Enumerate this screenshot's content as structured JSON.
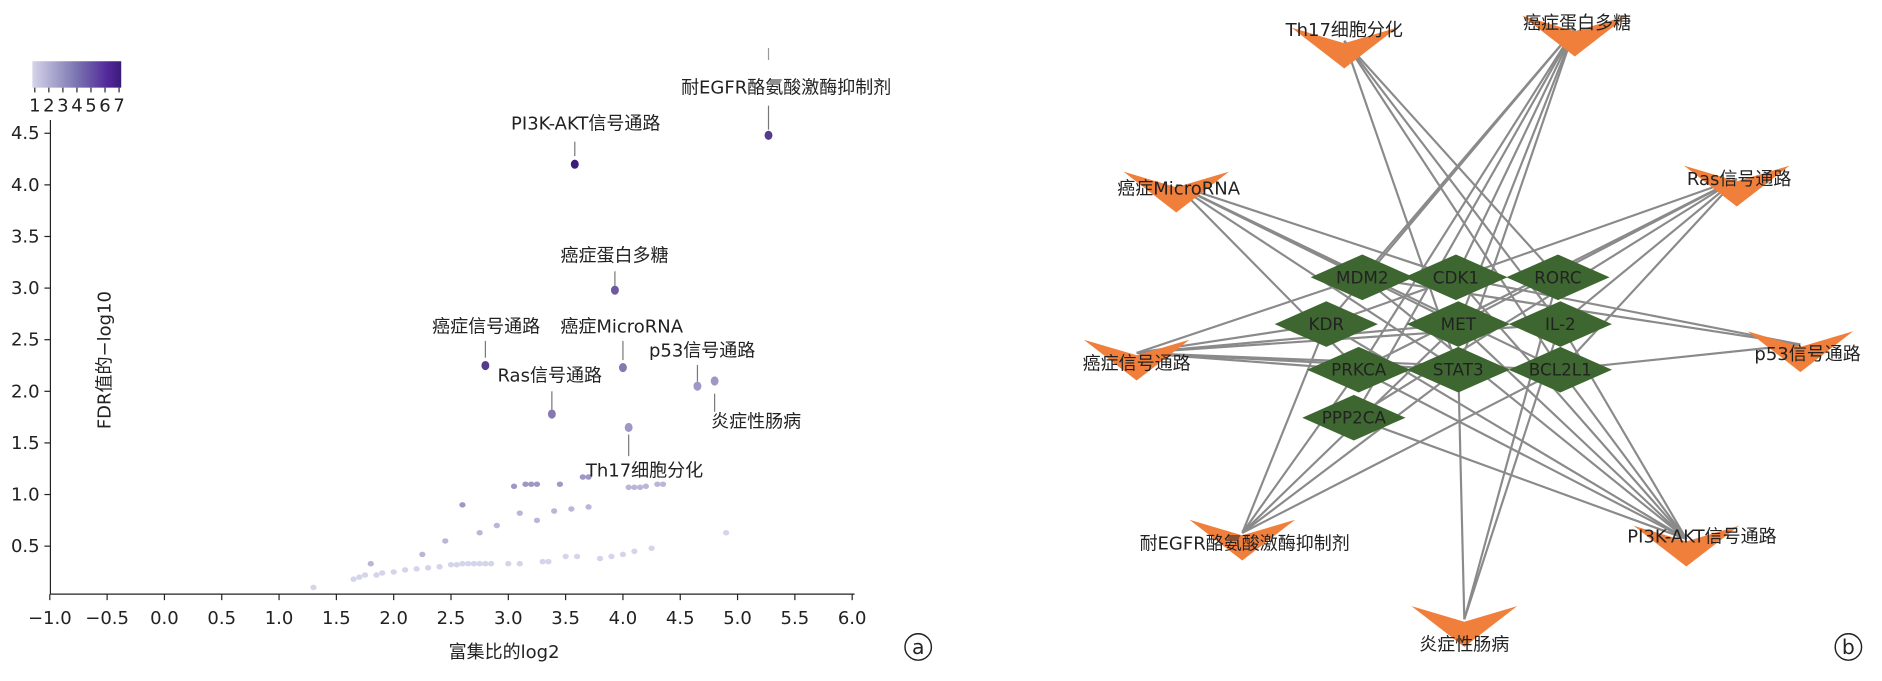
{
  "panel_a": {
    "marker": "a",
    "colorbar": {
      "ticks": [
        "1",
        "2",
        "3",
        "4",
        "5",
        "6",
        "7"
      ],
      "range": [
        1,
        7
      ],
      "colors": [
        "#d4d4ea",
        "#3b1c78"
      ]
    }
  },
  "panel_b": {
    "marker": "b"
  },
  "chart_data": [
    {
      "type": "scatter",
      "title": "",
      "xlabel": "富集比的log2",
      "ylabel": "FDR值的−log10",
      "xlim": [
        -1.0,
        6.0
      ],
      "ylim": [
        0,
        4.7
      ],
      "xticks": [
        "−1.0",
        "−0.5",
        "0.0",
        "0.5",
        "1.0",
        "1.5",
        "2.0",
        "2.5",
        "3.0",
        "3.5",
        "4.0",
        "4.5",
        "5.0",
        "5.5",
        "6.0"
      ],
      "xtick_values": [
        -1.0,
        -0.5,
        0,
        0.5,
        1.0,
        1.5,
        2.0,
        2.5,
        3.0,
        3.5,
        4.0,
        4.5,
        5.0,
        5.5,
        6.0
      ],
      "yticks": [
        "0.5",
        "1.0",
        "1.5",
        "2.0",
        "2.5",
        "3.0",
        "3.5",
        "4.0",
        "4.5"
      ],
      "ytick_values": [
        0.5,
        1.0,
        1.5,
        2.0,
        2.5,
        3.0,
        3.5,
        4.0,
        4.5
      ],
      "grid": false,
      "color_legend": "top-left",
      "labeled_points": [
        {
          "label": "耐EGFR酪氨酸激酶抑制剂",
          "x": 5.27,
          "y": 4.48,
          "c": 6
        },
        {
          "label": "PI3K-AKT信号通路",
          "x": 3.58,
          "y": 4.2,
          "c": 7
        },
        {
          "label": "癌症蛋白多糖",
          "x": 3.93,
          "y": 2.98,
          "c": 5
        },
        {
          "label": "癌症信号通路",
          "x": 2.8,
          "y": 2.25,
          "c": 6
        },
        {
          "label": "癌症MicroRNA",
          "x": 4.0,
          "y": 2.23,
          "c": 4
        },
        {
          "label": "Ras信号通路",
          "x": 3.38,
          "y": 1.78,
          "c": 4
        },
        {
          "label": "p53信号通路",
          "x": 4.65,
          "y": 2.05,
          "c": 3
        },
        {
          "label": "炎症性肠病",
          "x": 4.8,
          "y": 2.1,
          "c": 3
        },
        {
          "label": "Th17细胞分化",
          "x": 4.05,
          "y": 1.65,
          "c": 3
        }
      ],
      "points": [
        [
          1.3,
          0.1,
          1
        ],
        [
          1.65,
          0.18,
          1
        ],
        [
          1.7,
          0.2,
          1
        ],
        [
          1.75,
          0.22,
          1
        ],
        [
          1.8,
          0.33,
          2
        ],
        [
          1.85,
          0.22,
          1
        ],
        [
          1.9,
          0.24,
          1
        ],
        [
          2.0,
          0.25,
          1
        ],
        [
          2.1,
          0.27,
          1
        ],
        [
          2.2,
          0.28,
          1
        ],
        [
          2.25,
          0.42,
          2
        ],
        [
          2.3,
          0.29,
          1
        ],
        [
          2.4,
          0.3,
          1
        ],
        [
          2.45,
          0.55,
          2
        ],
        [
          2.5,
          0.32,
          1
        ],
        [
          2.55,
          0.32,
          1
        ],
        [
          2.6,
          0.33,
          1
        ],
        [
          2.65,
          0.33,
          1
        ],
        [
          2.7,
          0.33,
          1
        ],
        [
          2.75,
          0.33,
          1
        ],
        [
          2.8,
          0.33,
          1
        ],
        [
          2.85,
          0.33,
          1
        ],
        [
          2.6,
          0.9,
          3
        ],
        [
          2.75,
          0.63,
          2
        ],
        [
          2.9,
          0.7,
          2
        ],
        [
          3.0,
          0.33,
          1
        ],
        [
          3.05,
          1.08,
          3
        ],
        [
          3.1,
          0.33,
          1
        ],
        [
          3.15,
          1.1,
          3
        ],
        [
          3.2,
          1.1,
          3
        ],
        [
          3.25,
          1.1,
          3
        ],
        [
          3.1,
          0.82,
          2
        ],
        [
          3.3,
          0.35,
          1
        ],
        [
          3.35,
          0.35,
          1
        ],
        [
          3.4,
          0.84,
          2
        ],
        [
          3.45,
          1.1,
          3
        ],
        [
          3.55,
          0.86,
          2
        ],
        [
          3.65,
          1.17,
          3
        ],
        [
          3.7,
          1.17,
          3
        ],
        [
          3.7,
          0.88,
          2
        ],
        [
          3.8,
          0.38,
          1
        ],
        [
          3.9,
          0.4,
          1
        ],
        [
          4.0,
          0.42,
          1
        ],
        [
          4.05,
          1.07,
          2
        ],
        [
          4.1,
          1.07,
          2
        ],
        [
          4.15,
          1.07,
          2
        ],
        [
          4.2,
          1.08,
          2
        ],
        [
          4.25,
          0.48,
          1
        ],
        [
          4.3,
          1.1,
          2
        ],
        [
          4.35,
          1.1,
          2
        ],
        [
          4.1,
          0.45,
          1
        ],
        [
          4.9,
          0.63,
          1
        ],
        [
          3.25,
          0.75,
          2
        ],
        [
          3.5,
          0.4,
          1
        ],
        [
          3.6,
          0.4,
          1
        ]
      ]
    },
    {
      "type": "network",
      "pathway_color": "#f07f3c",
      "gene_color": "#3e6630",
      "edge_color": "#8a8a8a",
      "pathways": [
        "Th17细胞分化",
        "癌症蛋白多糖",
        "癌症MicroRNA",
        "Ras信号通路",
        "癌症信号通路",
        "p53信号通路",
        "耐EGFR酪氨酸激酶抑制剂",
        "PI3K-AKT信号通路",
        "炎症性肠病"
      ],
      "genes": [
        "MDM2",
        "CDK1",
        "RORC",
        "KDR",
        "MET",
        "IL-2",
        "PRKCA",
        "STAT3",
        "BCL2L1",
        "PPP2CA"
      ],
      "edges": [
        [
          "Th17细胞分化",
          "RORC"
        ],
        [
          "Th17细胞分化",
          "IL-2"
        ],
        [
          "Th17细胞分化",
          "STAT3"
        ],
        [
          "Th17细胞分化",
          "BCL2L1"
        ],
        [
          "癌症蛋白多糖",
          "MDM2"
        ],
        [
          "癌症蛋白多糖",
          "KDR"
        ],
        [
          "癌症蛋白多糖",
          "MET"
        ],
        [
          "癌症蛋白多糖",
          "PRKCA"
        ],
        [
          "癌症蛋白多糖",
          "STAT3"
        ],
        [
          "癌症蛋白多糖",
          "PPP2CA"
        ],
        [
          "癌症蛋白多糖",
          "CDK1"
        ],
        [
          "癌症MicroRNA",
          "MDM2"
        ],
        [
          "癌症MicroRNA",
          "MET"
        ],
        [
          "癌症MicroRNA",
          "STAT3"
        ],
        [
          "癌症MicroRNA",
          "PRKCA"
        ],
        [
          "癌症MicroRNA",
          "BCL2L1"
        ],
        [
          "癌症MicroRNA",
          "CDK1"
        ],
        [
          "Ras信号通路",
          "KDR"
        ],
        [
          "Ras信号通路",
          "MET"
        ],
        [
          "Ras信号通路",
          "PRKCA"
        ],
        [
          "Ras信号通路",
          "BCL2L1"
        ],
        [
          "Ras信号通路",
          "IL-2"
        ],
        [
          "Ras信号通路",
          "PPP2CA"
        ],
        [
          "癌症信号通路",
          "MDM2"
        ],
        [
          "癌症信号通路",
          "KDR"
        ],
        [
          "癌症信号通路",
          "MET"
        ],
        [
          "癌症信号通路",
          "PRKCA"
        ],
        [
          "癌症信号通路",
          "STAT3"
        ],
        [
          "癌症信号通路",
          "BCL2L1"
        ],
        [
          "癌症信号通路",
          "IL-2"
        ],
        [
          "p53信号通路",
          "MDM2"
        ],
        [
          "p53信号通路",
          "CDK1"
        ],
        [
          "p53信号通路",
          "BCL2L1"
        ],
        [
          "耐EGFR酪氨酸激酶抑制剂",
          "KDR"
        ],
        [
          "耐EGFR酪氨酸激酶抑制剂",
          "MET"
        ],
        [
          "耐EGFR酪氨酸激酶抑制剂",
          "STAT3"
        ],
        [
          "耐EGFR酪氨酸激酶抑制剂",
          "BCL2L1"
        ],
        [
          "耐EGFR酪氨酸激酶抑制剂",
          "PRKCA"
        ],
        [
          "PI3K-AKT信号通路",
          "KDR"
        ],
        [
          "PI3K-AKT信号通路",
          "MET"
        ],
        [
          "PI3K-AKT信号通路",
          "IL-2"
        ],
        [
          "PI3K-AKT信号通路",
          "PRKCA"
        ],
        [
          "PI3K-AKT信号通路",
          "BCL2L1"
        ],
        [
          "PI3K-AKT信号通路",
          "MDM2"
        ],
        [
          "PI3K-AKT信号通路",
          "CDK1"
        ],
        [
          "PI3K-AKT信号通路",
          "PPP2CA"
        ],
        [
          "炎症性肠病",
          "RORC"
        ],
        [
          "炎症性肠病",
          "IL-2"
        ],
        [
          "炎症性肠病",
          "STAT3"
        ]
      ]
    }
  ]
}
